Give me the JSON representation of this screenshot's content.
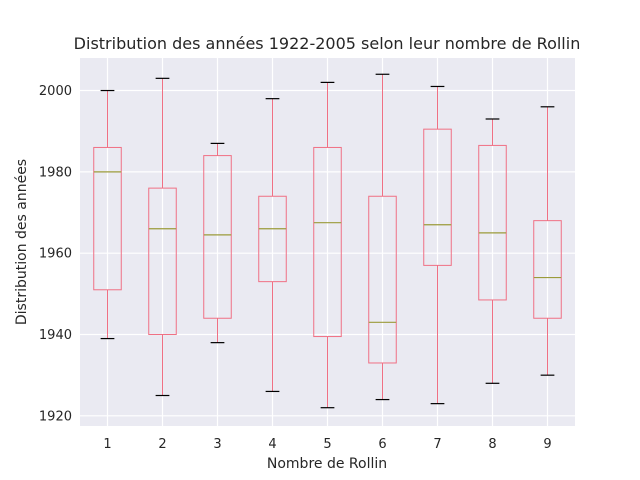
{
  "chart_data": {
    "type": "boxplot",
    "title": "Distribution des années 1922-2005 selon leur nombre de Rollin",
    "xlabel": "Nombre de Rollin",
    "ylabel": "Distribution des années",
    "categories": [
      "1",
      "2",
      "3",
      "4",
      "5",
      "6",
      "7",
      "8",
      "9"
    ],
    "ylim": [
      1917.5,
      2008
    ],
    "yticks": [
      1920,
      1940,
      1960,
      1980,
      2000
    ],
    "grid": true,
    "boxes": [
      {
        "category": "1",
        "whisker_low": 1939,
        "q1": 1951,
        "median": 1980,
        "q3": 1986,
        "whisker_high": 2000
      },
      {
        "category": "2",
        "whisker_low": 1925,
        "q1": 1940,
        "median": 1966,
        "q3": 1976,
        "whisker_high": 2003
      },
      {
        "category": "3",
        "whisker_low": 1938,
        "q1": 1944,
        "median": 1964.5,
        "q3": 1984,
        "whisker_high": 1987
      },
      {
        "category": "4",
        "whisker_low": 1926,
        "q1": 1953,
        "median": 1966,
        "q3": 1974,
        "whisker_high": 1998
      },
      {
        "category": "5",
        "whisker_low": 1922,
        "q1": 1939.5,
        "median": 1967.5,
        "q3": 1986,
        "whisker_high": 2002
      },
      {
        "category": "6",
        "whisker_low": 1924,
        "q1": 1933,
        "median": 1943,
        "q3": 1974,
        "whisker_high": 2004
      },
      {
        "category": "7",
        "whisker_low": 1923,
        "q1": 1957,
        "median": 1967,
        "q3": 1990.5,
        "whisker_high": 2001
      },
      {
        "category": "8",
        "whisker_low": 1928,
        "q1": 1948.5,
        "median": 1965,
        "q3": 1986.5,
        "whisker_high": 1993
      },
      {
        "category": "9",
        "whisker_low": 1930,
        "q1": 1944,
        "median": 1954,
        "q3": 1968,
        "whisker_high": 1996
      }
    ]
  },
  "colors": {
    "background": "#eaeaf2",
    "grid": "#ffffff",
    "box": "#f07084",
    "median": "#9b9b3a",
    "cap": "#000000",
    "text": "#262626"
  }
}
